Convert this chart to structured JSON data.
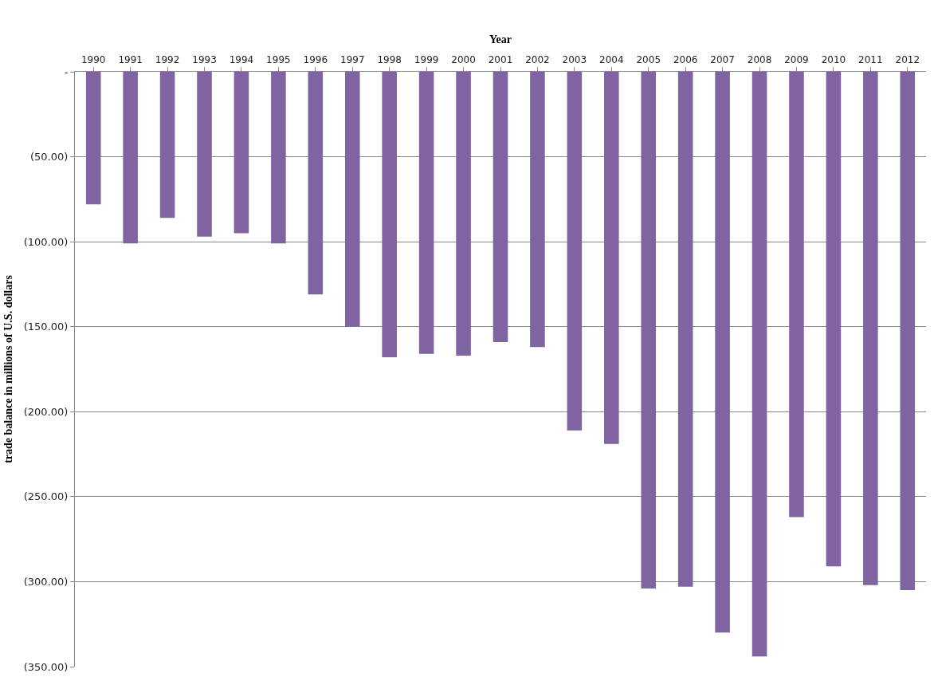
{
  "chart_data": {
    "type": "bar",
    "xlabel": "Year",
    "ylabel": "trade balance in millions of U.S. dollars",
    "categories": [
      "1990",
      "1991",
      "1992",
      "1993",
      "1994",
      "1995",
      "1996",
      "1997",
      "1998",
      "1999",
      "2000",
      "2001",
      "2002",
      "2003",
      "2004",
      "2005",
      "2006",
      "2007",
      "2008",
      "2009",
      "2010",
      "2011",
      "2012"
    ],
    "series": [
      {
        "color": "#8064a2",
        "values": [
          -78,
          -101,
          -86,
          -97,
          -95,
          -101,
          -131,
          -150,
          -168,
          -166,
          -167,
          -159,
          -162,
          -211,
          -219,
          -304,
          -303,
          -330,
          -344,
          -262,
          -291,
          -302,
          -305
        ]
      }
    ],
    "ylim": [
      -350,
      0
    ],
    "yticks": [
      {
        "value": 0,
        "label": "-"
      },
      {
        "value": -50,
        "label": "(50.00)"
      },
      {
        "value": -100,
        "label": "(100.00)"
      },
      {
        "value": -150,
        "label": "(150.00)"
      },
      {
        "value": -200,
        "label": "(200.00)"
      },
      {
        "value": -250,
        "label": "(250.00)"
      },
      {
        "value": -300,
        "label": "(300.00)"
      },
      {
        "value": -350,
        "label": "(350.00)"
      }
    ],
    "grid": "y"
  }
}
